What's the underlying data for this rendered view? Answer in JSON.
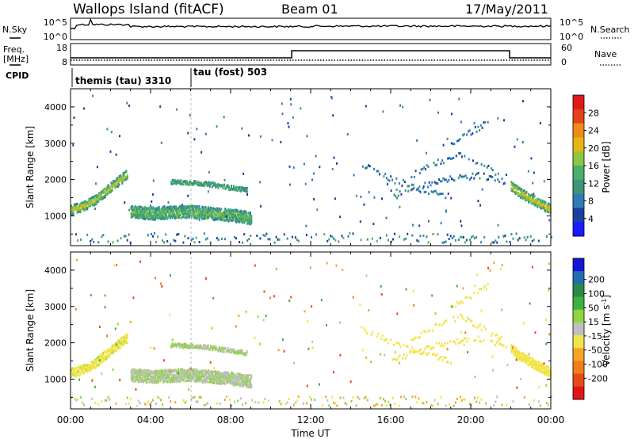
{
  "header": {
    "station": "Wallops Island (fitACF)",
    "beam": "Beam 01",
    "date": "17/May/2011"
  },
  "status_panels": {
    "nsky": {
      "label": "N.Sky",
      "ticks": [
        "10^5",
        "10^0"
      ]
    },
    "nsearch": {
      "label": "N.Search",
      "ticks": [
        "10^5",
        "10^0"
      ]
    },
    "freq": {
      "label": "Freq.",
      "unit": "[MHz]",
      "ticks": [
        "18",
        "8"
      ]
    },
    "nave": {
      "label": "Nave",
      "ticks": [
        "60",
        "0"
      ]
    },
    "cpid": {
      "label": "CPID",
      "modes": [
        {
          "name": "themis (tau) 3310",
          "start_hour": 0
        },
        {
          "name": "tau (fost) 503",
          "start_hour": 6
        }
      ]
    }
  },
  "x_axis": {
    "label": "Time UT",
    "ticks": [
      "00:00",
      "04:00",
      "08:00",
      "12:00",
      "16:00",
      "20:00",
      "00:00"
    ],
    "range_hours": [
      0,
      24
    ]
  },
  "colors": {
    "power": [
      "#1a1aff",
      "#1a3f9e",
      "#2e7cb8",
      "#3e9676",
      "#47b06b",
      "#8ec640",
      "#e8b514",
      "#f08a1a",
      "#e4421a",
      "#e01818"
    ],
    "velocity": [
      "#1515d8",
      "#1f6fae",
      "#2a8a46",
      "#3cb040",
      "#8ed63e",
      "#bfbfbf",
      "#f0e44a",
      "#f5a623",
      "#f07d1a",
      "#e84a16",
      "#e01616"
    ]
  },
  "chart_data": [
    {
      "type": "heatmap",
      "title": "Power",
      "xlabel": "Time UT",
      "ylabel": "Slant Range [km]",
      "colorbar_label": "Power [dB]",
      "colorbar_ticks": [
        "28",
        "24",
        "20",
        "16",
        "12",
        "8",
        "4"
      ],
      "colorbar_range": [
        0,
        32
      ],
      "xlim": [
        0,
        24
      ],
      "ylim": [
        180,
        4500
      ],
      "y_ticks": [
        "4000",
        "3000",
        "2000",
        "1000"
      ],
      "y_tick_values": [
        4000,
        3000,
        2000,
        1000
      ],
      "features": [
        {
          "name": "evening-arc",
          "t": [
            0.0,
            0.6,
            1.2,
            1.8,
            2.4,
            2.8
          ],
          "range": [
            1150,
            1250,
            1420,
            1680,
            1950,
            2120
          ],
          "power": 21
        },
        {
          "name": "night-blob",
          "t": [
            3.0,
            4.0,
            5.0,
            6.0,
            7.0,
            8.0,
            9.0
          ],
          "range": [
            1100,
            1050,
            1080,
            1100,
            1050,
            1000,
            920
          ],
          "power": 15
        },
        {
          "name": "upper-band",
          "t": [
            5.0,
            6.0,
            7.0,
            8.0,
            8.8
          ],
          "range": [
            1920,
            1900,
            1850,
            1760,
            1700
          ],
          "power": 12
        },
        {
          "name": "morning-arc",
          "t": [
            22.0,
            22.5,
            23.0,
            23.5,
            24.0
          ],
          "range": [
            1800,
            1600,
            1450,
            1300,
            1150
          ],
          "power": 22
        }
      ]
    },
    {
      "type": "heatmap",
      "title": "Velocity",
      "xlabel": "Time UT",
      "ylabel": "Slant Range [km]",
      "colorbar_label": "Velocity [m s^-1]",
      "colorbar_ticks": [
        "200",
        "100",
        "50",
        "15",
        "-15",
        "-50",
        "-100",
        "-200"
      ],
      "colorbar_range": [
        -250,
        250
      ],
      "xlim": [
        0,
        24
      ],
      "ylim": [
        180,
        4500
      ],
      "y_ticks": [
        "4000",
        "3000",
        "2000",
        "1000"
      ],
      "y_tick_values": [
        4000,
        3000,
        2000,
        1000
      ],
      "features": [
        {
          "name": "ground-scatter-arc",
          "velocity": 0
        },
        {
          "name": "night-blob",
          "velocity": 40
        }
      ]
    }
  ]
}
